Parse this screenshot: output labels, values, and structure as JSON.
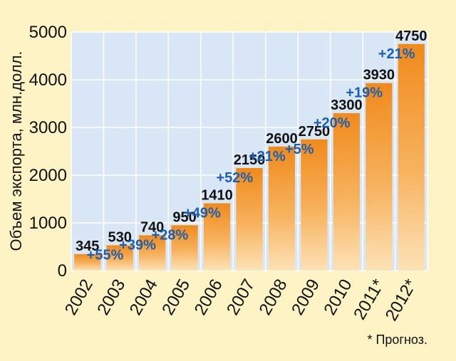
{
  "chart_data": {
    "type": "bar",
    "categories": [
      "2002",
      "2003",
      "2004",
      "2005",
      "2006",
      "2007",
      "2008",
      "2009",
      "2010",
      "2011*",
      "2012*"
    ],
    "values": [
      345,
      530,
      740,
      950,
      1410,
      2150,
      2600,
      2750,
      3300,
      3930,
      4750
    ],
    "value_labels": [
      "345",
      "530",
      "740",
      "950",
      "1410",
      "2150",
      "2600",
      "2750",
      "3300",
      "3930",
      "4750"
    ],
    "growth_labels": [
      "",
      "+55%",
      "+39%",
      "+28%",
      "+49%",
      "+52%",
      "+21%",
      "+5%",
      "+20%",
      "+19%",
      "+21%"
    ],
    "ylabel": "Объем экспорта, млн.долл.",
    "xlabel": "",
    "title": "",
    "ylim": [
      0,
      5000
    ],
    "yticks": [
      0,
      1000,
      2000,
      3000,
      4000,
      5000
    ],
    "grid": true,
    "footnote": "* Прогноз.",
    "colors": {
      "background": "#fdf3c4",
      "plot_background": "#d9e6f5",
      "bar_top": "#f08a1c",
      "bar_bottom": "#fde2b6",
      "growth_text": "#1a5fb4",
      "grid": "#ffffff"
    }
  }
}
